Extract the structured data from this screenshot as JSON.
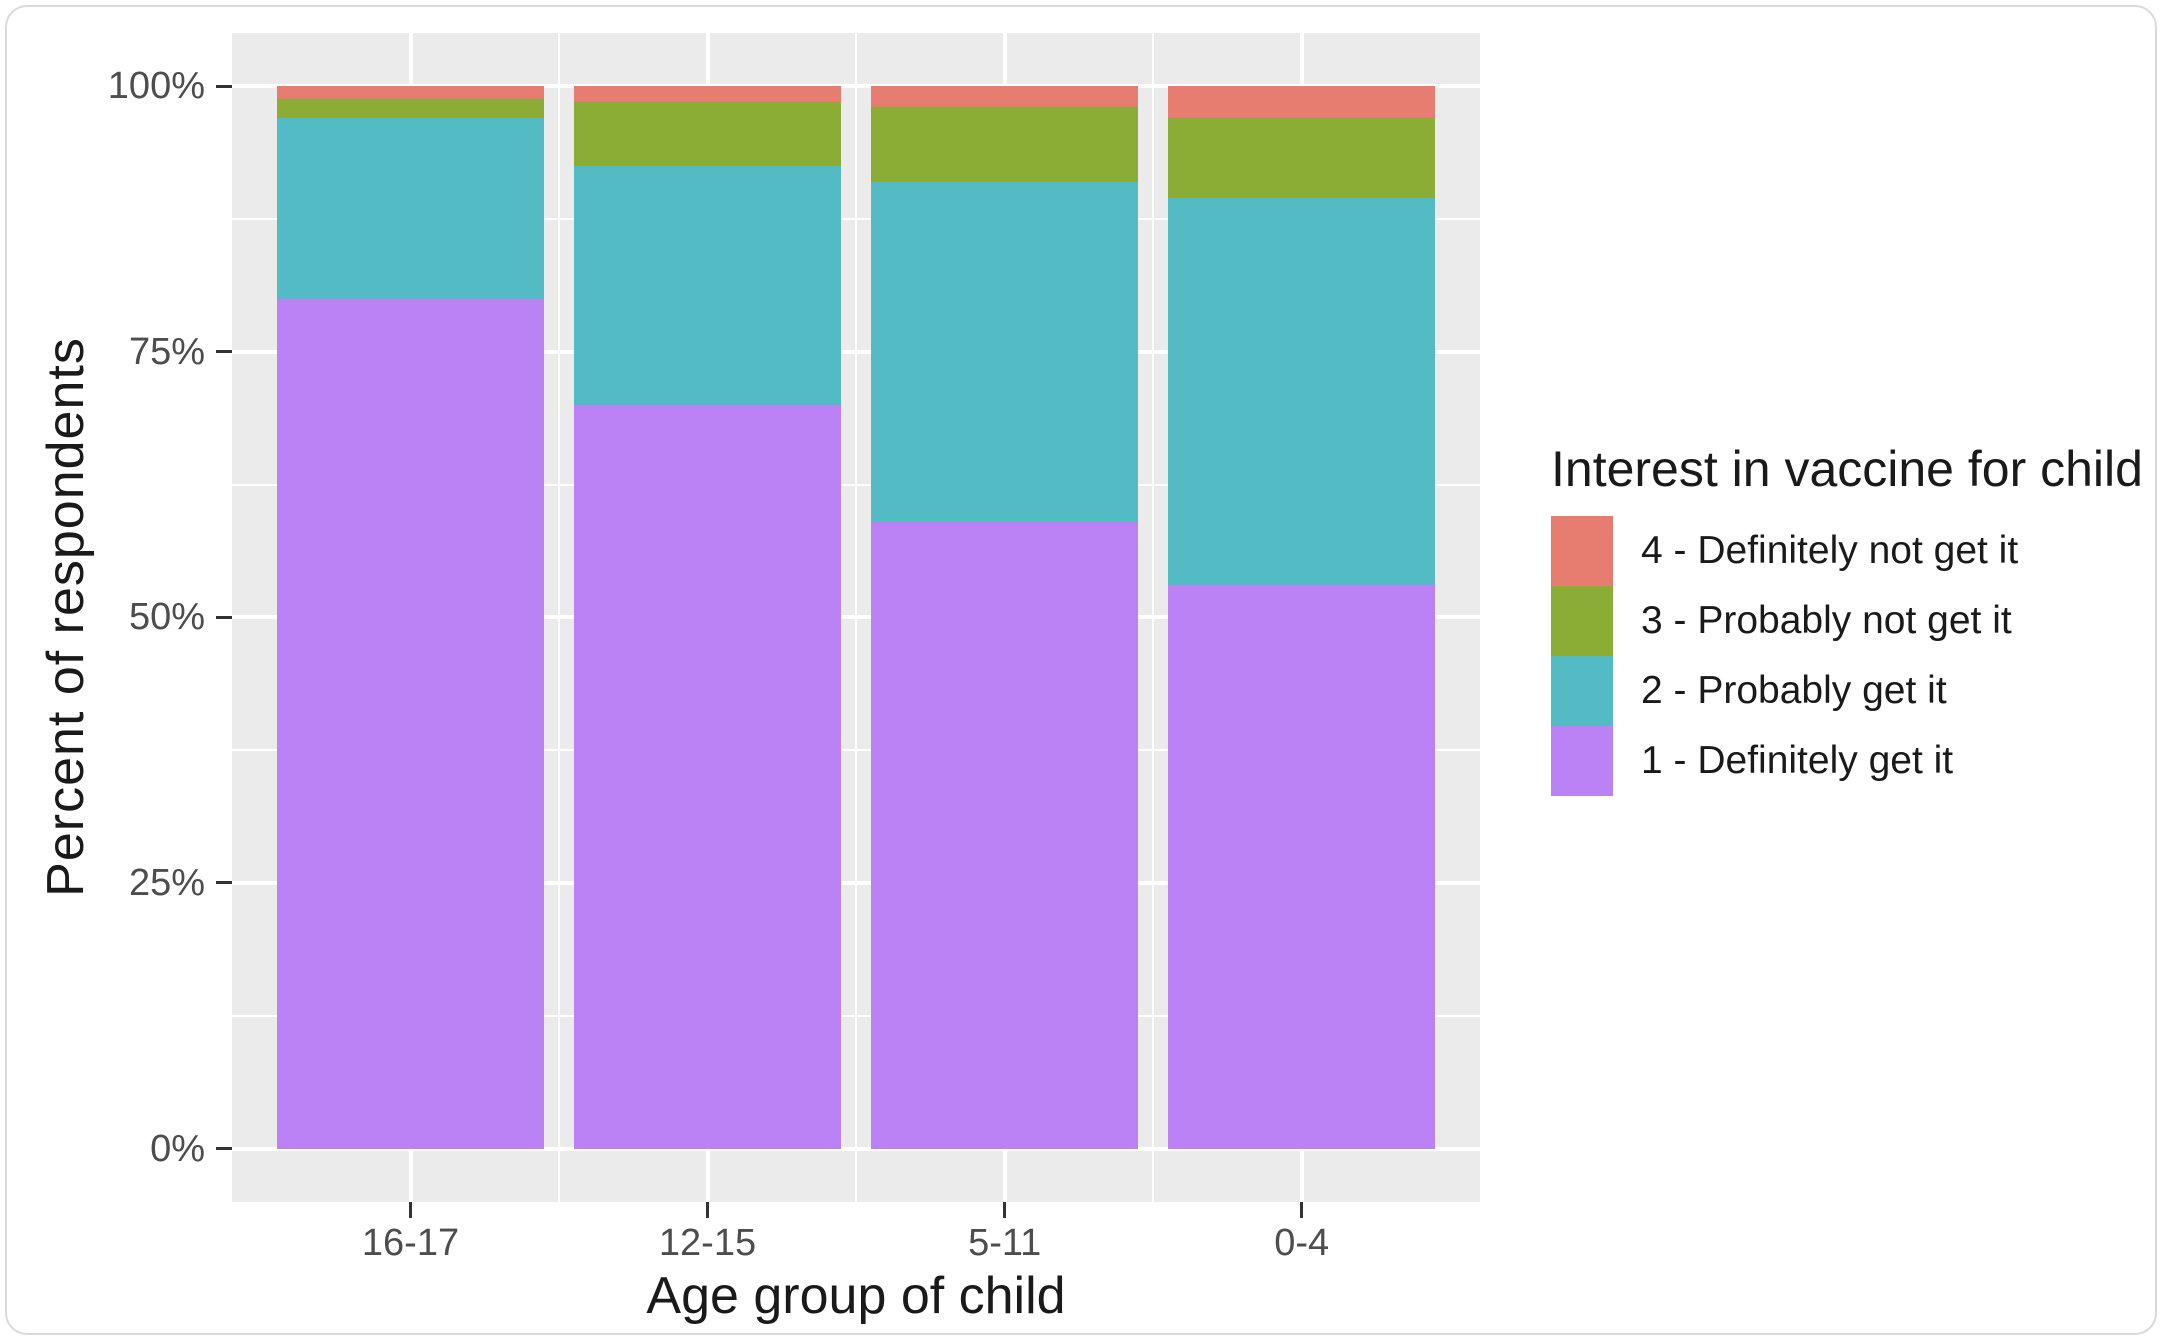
{
  "chart_data": {
    "type": "bar",
    "stacked": true,
    "orientation": "vertical",
    "xlabel": "Age group of child",
    "ylabel": "Percent of respondents",
    "categories": [
      "16-17",
      "12-15",
      "5-11",
      "0-4"
    ],
    "y_ticks": [
      {
        "label": "0%",
        "value": 0
      },
      {
        "label": "25%",
        "value": 25
      },
      {
        "label": "50%",
        "value": 50
      },
      {
        "label": "75%",
        "value": 75
      },
      {
        "label": "100%",
        "value": 100
      }
    ],
    "ylim": [
      0,
      100
    ],
    "grid": true,
    "panel_background": "#ebebeb",
    "gridline_color": "#ffffff",
    "legend_title": "Interest in vaccine for child",
    "legend_position": "right",
    "series": [
      {
        "name": "4 - Definitely not get it",
        "color": "#e77d71",
        "values": [
          1.2,
          1.5,
          2.0,
          3.0
        ]
      },
      {
        "name": "3 - Probably not get it",
        "color": "#8bad35",
        "values": [
          1.8,
          6.0,
          7.0,
          7.5
        ]
      },
      {
        "name": "2 - Probably get it",
        "color": "#53bbc3",
        "values": [
          17.0,
          22.5,
          32.0,
          36.5
        ]
      },
      {
        "name": "1 - Definitely get it",
        "color": "#bb82f6",
        "values": [
          80.0,
          70.0,
          59.0,
          53.0
        ]
      }
    ]
  }
}
